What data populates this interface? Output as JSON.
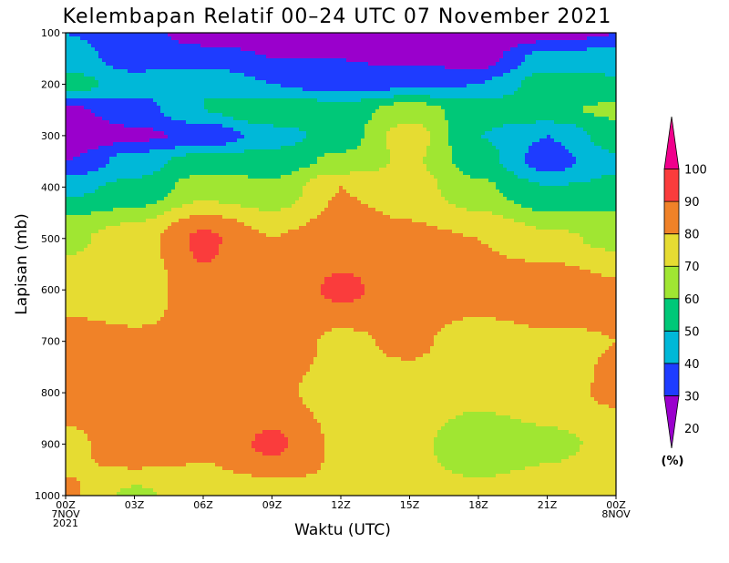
{
  "chart_data": {
    "type": "heatmap",
    "title": "Kelembapan Relatif 00–24 UTC 07 November 2021",
    "xlabel": "Waktu (UTC)",
    "ylabel": "Lapisan (mb)",
    "x_ticks": [
      "00Z",
      "03Z",
      "06Z",
      "09Z",
      "12Z",
      "15Z",
      "18Z",
      "21Z",
      "00Z"
    ],
    "x_hours": [
      0,
      3,
      6,
      9,
      12,
      15,
      18,
      21,
      24
    ],
    "x_sublabels": [
      {
        "hour": 0,
        "lines": [
          "7NOV",
          "2021"
        ]
      },
      {
        "hour": 24,
        "lines": [
          "8NOV"
        ]
      }
    ],
    "y_ticks": [
      100,
      200,
      300,
      400,
      500,
      600,
      700,
      800,
      900,
      1000
    ],
    "xlim": [
      0,
      24
    ],
    "ylim": [
      1000,
      100
    ],
    "colorbar": {
      "unit_label": "(%)",
      "levels": [
        20,
        30,
        40,
        50,
        60,
        70,
        80,
        90,
        100
      ],
      "colors": [
        "#9a00cc",
        "#1e3cff",
        "#00b8d8",
        "#00c878",
        "#a0e632",
        "#e6dc32",
        "#f08228",
        "#fa3c3c",
        "#f0008c"
      ]
    },
    "anchors": [
      {
        "t": 0,
        "p": 100,
        "rh": 40
      },
      {
        "t": 3,
        "p": 100,
        "rh": 35
      },
      {
        "t": 6,
        "p": 100,
        "rh": 25
      },
      {
        "t": 9,
        "p": 100,
        "rh": 25
      },
      {
        "t": 12,
        "p": 100,
        "rh": 25
      },
      {
        "t": 15,
        "p": 100,
        "rh": 20
      },
      {
        "t": 18,
        "p": 100,
        "rh": 20
      },
      {
        "t": 21,
        "p": 100,
        "rh": 25
      },
      {
        "t": 24,
        "p": 100,
        "rh": 30
      },
      {
        "t": 0,
        "p": 150,
        "rh": 45
      },
      {
        "t": 3,
        "p": 150,
        "rh": 35
      },
      {
        "t": 6,
        "p": 150,
        "rh": 35
      },
      {
        "t": 9,
        "p": 150,
        "rh": 30
      },
      {
        "t": 12,
        "p": 150,
        "rh": 30
      },
      {
        "t": 15,
        "p": 150,
        "rh": 28
      },
      {
        "t": 18,
        "p": 150,
        "rh": 25
      },
      {
        "t": 21,
        "p": 150,
        "rh": 45
      },
      {
        "t": 24,
        "p": 150,
        "rh": 45
      },
      {
        "t": 0,
        "p": 200,
        "rh": 55
      },
      {
        "t": 3,
        "p": 200,
        "rh": 45
      },
      {
        "t": 6,
        "p": 200,
        "rh": 50
      },
      {
        "t": 9,
        "p": 200,
        "rh": 40
      },
      {
        "t": 12,
        "p": 200,
        "rh": 35
      },
      {
        "t": 15,
        "p": 200,
        "rh": 38
      },
      {
        "t": 18,
        "p": 200,
        "rh": 40
      },
      {
        "t": 21,
        "p": 200,
        "rh": 55
      },
      {
        "t": 24,
        "p": 200,
        "rh": 52
      },
      {
        "t": 0,
        "p": 250,
        "rh": 28
      },
      {
        "t": 3,
        "p": 250,
        "rh": 35
      },
      {
        "t": 6,
        "p": 250,
        "rh": 50
      },
      {
        "t": 9,
        "p": 250,
        "rh": 60
      },
      {
        "t": 12,
        "p": 250,
        "rh": 55
      },
      {
        "t": 15,
        "p": 250,
        "rh": 65
      },
      {
        "t": 18,
        "p": 250,
        "rh": 55
      },
      {
        "t": 21,
        "p": 250,
        "rh": 58
      },
      {
        "t": 24,
        "p": 250,
        "rh": 62
      },
      {
        "t": 0,
        "p": 300,
        "rh": 22
      },
      {
        "t": 3,
        "p": 300,
        "rh": 28
      },
      {
        "t": 6,
        "p": 300,
        "rh": 32
      },
      {
        "t": 9,
        "p": 300,
        "rh": 45
      },
      {
        "t": 12,
        "p": 300,
        "rh": 55
      },
      {
        "t": 15,
        "p": 300,
        "rh": 75
      },
      {
        "t": 18,
        "p": 300,
        "rh": 50
      },
      {
        "t": 21,
        "p": 300,
        "rh": 40
      },
      {
        "t": 24,
        "p": 300,
        "rh": 55
      },
      {
        "t": 0,
        "p": 350,
        "rh": 30
      },
      {
        "t": 3,
        "p": 350,
        "rh": 45
      },
      {
        "t": 6,
        "p": 350,
        "rh": 55
      },
      {
        "t": 9,
        "p": 350,
        "rh": 55
      },
      {
        "t": 12,
        "p": 350,
        "rh": 62
      },
      {
        "t": 15,
        "p": 350,
        "rh": 72
      },
      {
        "t": 18,
        "p": 350,
        "rh": 55
      },
      {
        "t": 21,
        "p": 350,
        "rh": 35
      },
      {
        "t": 24,
        "p": 350,
        "rh": 48
      },
      {
        "t": 0,
        "p": 400,
        "rh": 48
      },
      {
        "t": 3,
        "p": 400,
        "rh": 52
      },
      {
        "t": 6,
        "p": 400,
        "rh": 65
      },
      {
        "t": 9,
        "p": 400,
        "rh": 62
      },
      {
        "t": 12,
        "p": 400,
        "rh": 80
      },
      {
        "t": 15,
        "p": 400,
        "rh": 75
      },
      {
        "t": 18,
        "p": 400,
        "rh": 62
      },
      {
        "t": 21,
        "p": 400,
        "rh": 50
      },
      {
        "t": 24,
        "p": 400,
        "rh": 52
      },
      {
        "t": 0,
        "p": 500,
        "rh": 68
      },
      {
        "t": 3,
        "p": 500,
        "rh": 75
      },
      {
        "t": 6,
        "p": 500,
        "rh": 92
      },
      {
        "t": 9,
        "p": 500,
        "rh": 80
      },
      {
        "t": 12,
        "p": 500,
        "rh": 85
      },
      {
        "t": 15,
        "p": 500,
        "rh": 82
      },
      {
        "t": 18,
        "p": 500,
        "rh": 80
      },
      {
        "t": 21,
        "p": 500,
        "rh": 72
      },
      {
        "t": 24,
        "p": 500,
        "rh": 68
      },
      {
        "t": 0,
        "p": 600,
        "rh": 76
      },
      {
        "t": 3,
        "p": 600,
        "rh": 72
      },
      {
        "t": 6,
        "p": 600,
        "rh": 88
      },
      {
        "t": 9,
        "p": 600,
        "rh": 82
      },
      {
        "t": 12,
        "p": 600,
        "rh": 92
      },
      {
        "t": 15,
        "p": 600,
        "rh": 85
      },
      {
        "t": 18,
        "p": 600,
        "rh": 86
      },
      {
        "t": 21,
        "p": 600,
        "rh": 90
      },
      {
        "t": 24,
        "p": 600,
        "rh": 82
      },
      {
        "t": 0,
        "p": 700,
        "rh": 84
      },
      {
        "t": 3,
        "p": 700,
        "rh": 82
      },
      {
        "t": 6,
        "p": 700,
        "rh": 82
      },
      {
        "t": 9,
        "p": 700,
        "rh": 86
      },
      {
        "t": 12,
        "p": 700,
        "rh": 78
      },
      {
        "t": 15,
        "p": 700,
        "rh": 82
      },
      {
        "t": 18,
        "p": 700,
        "rh": 75
      },
      {
        "t": 21,
        "p": 700,
        "rh": 78
      },
      {
        "t": 24,
        "p": 700,
        "rh": 80
      },
      {
        "t": 0,
        "p": 800,
        "rh": 90
      },
      {
        "t": 3,
        "p": 800,
        "rh": 82
      },
      {
        "t": 6,
        "p": 800,
        "rh": 88
      },
      {
        "t": 9,
        "p": 800,
        "rh": 82
      },
      {
        "t": 12,
        "p": 800,
        "rh": 76
      },
      {
        "t": 15,
        "p": 800,
        "rh": 75
      },
      {
        "t": 18,
        "p": 800,
        "rh": 72
      },
      {
        "t": 21,
        "p": 800,
        "rh": 75
      },
      {
        "t": 24,
        "p": 800,
        "rh": 82
      },
      {
        "t": 0,
        "p": 900,
        "rh": 76
      },
      {
        "t": 3,
        "p": 900,
        "rh": 90
      },
      {
        "t": 6,
        "p": 900,
        "rh": 82
      },
      {
        "t": 9,
        "p": 900,
        "rh": 92
      },
      {
        "t": 12,
        "p": 900,
        "rh": 78
      },
      {
        "t": 15,
        "p": 900,
        "rh": 72
      },
      {
        "t": 18,
        "p": 900,
        "rh": 65
      },
      {
        "t": 21,
        "p": 900,
        "rh": 68
      },
      {
        "t": 24,
        "p": 900,
        "rh": 72
      },
      {
        "t": 0,
        "p": 1000,
        "rh": 82
      },
      {
        "t": 3,
        "p": 1000,
        "rh": 68
      },
      {
        "t": 6,
        "p": 1000,
        "rh": 75
      },
      {
        "t": 9,
        "p": 1000,
        "rh": 75
      },
      {
        "t": 12,
        "p": 1000,
        "rh": 80
      },
      {
        "t": 15,
        "p": 1000,
        "rh": 72
      },
      {
        "t": 18,
        "p": 1000,
        "rh": 72
      },
      {
        "t": 21,
        "p": 1000,
        "rh": 74
      },
      {
        "t": 24,
        "p": 1000,
        "rh": 80
      }
    ]
  }
}
